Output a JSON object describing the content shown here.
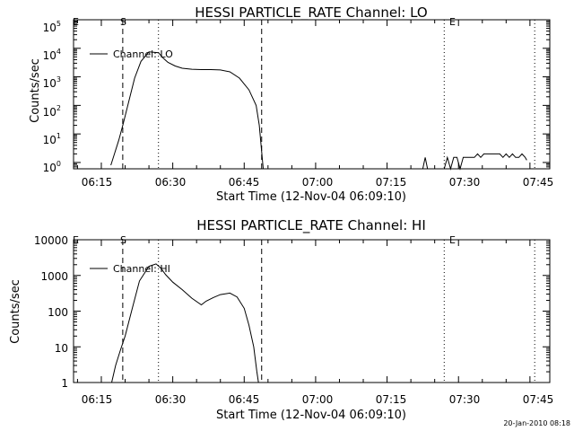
{
  "chart_data": [
    {
      "type": "line",
      "title": "HESSI PARTICLE_RATE Channel: LO",
      "xlabel": "Start Time (12-Nov-04 06:09:10)",
      "ylabel": "Counts/sec",
      "x_ticks": [
        "06:15",
        "06:30",
        "06:45",
        "07:00",
        "07:15",
        "07:30",
        "07:45"
      ],
      "y_ticks": [
        "10^0",
        "10^1",
        "10^2",
        "10^3",
        "10^4",
        "10^5"
      ],
      "y_tick_base": "10",
      "y_tick_exps": [
        "0",
        "1",
        "2",
        "3",
        "4",
        "5"
      ],
      "y_scale": "log",
      "xlim": [
        "06:09:10",
        "07:49:10"
      ],
      "ylim": [
        0.6,
        100000
      ],
      "legend": "Channel: LO",
      "legend_position": "top-left",
      "markers": [
        {
          "label": "S",
          "time": "06:19:30",
          "style": "dashed"
        },
        {
          "label": "",
          "time": "06:27:00",
          "style": "dotted"
        },
        {
          "label": "",
          "time": "06:48:40",
          "style": "dashed"
        },
        {
          "label": "E",
          "time": "07:27:00",
          "style": "dotted"
        },
        {
          "label": "",
          "time": "07:46:00",
          "style": "dotted"
        }
      ],
      "frame_marks": {
        "left": "E"
      },
      "series": [
        {
          "x": [
            "06:17:00",
            "06:18:40",
            "06:19:30",
            "06:20:50",
            "06:22:00",
            "06:23:20",
            "06:25:00",
            "06:27:00",
            "06:28:00",
            "06:29:00",
            "06:30:30",
            "06:32:00",
            "06:34:00",
            "06:36:00",
            "06:38:00",
            "06:40:00",
            "06:42:00",
            "06:44:00",
            "06:46:00",
            "06:47:30",
            "06:48:10",
            "06:48:40",
            "06:49:00"
          ],
          "values": [
            0.8,
            6,
            20,
            150,
            900,
            3500,
            7500,
            7000,
            4500,
            3200,
            2400,
            2000,
            1850,
            1800,
            1800,
            1750,
            1500,
            900,
            350,
            100,
            20,
            2.5,
            0.6
          ]
        },
        {
          "x": [
            "07:22:30",
            "07:23:00",
            "07:23:30"
          ],
          "values": [
            0.6,
            1.5,
            0.6
          ]
        },
        {
          "x": [
            "07:27:00",
            "07:27:40",
            "07:28:20",
            "07:29:00",
            "07:29:40",
            "07:30:20",
            "07:31:00",
            "07:32:00",
            "07:32:40",
            "07:33:20",
            "07:34:00",
            "07:34:40",
            "07:35:20",
            "07:36:00",
            "07:36:40",
            "07:37:20",
            "07:38:00",
            "07:38:40",
            "07:39:20",
            "07:40:00",
            "07:40:40",
            "07:41:20",
            "07:42:00",
            "07:42:40",
            "07:43:20",
            "07:44:00",
            "07:44:20"
          ],
          "values": [
            0.6,
            1.5,
            0.6,
            1.5,
            1.5,
            0.6,
            1.5,
            1.5,
            1.5,
            1.5,
            2,
            1.5,
            2,
            2,
            2,
            2,
            2,
            2,
            1.5,
            2,
            1.5,
            2,
            1.5,
            1.5,
            2,
            1.5,
            1.2
          ]
        }
      ]
    },
    {
      "type": "line",
      "title": "HESSI PARTICLE_RATE Channel: HI",
      "xlabel": "Start Time (12-Nov-04 06:09:10)",
      "ylabel": "Counts/sec",
      "x_ticks": [
        "06:15",
        "06:30",
        "06:45",
        "07:00",
        "07:15",
        "07:30",
        "07:45"
      ],
      "y_ticks": [
        "1",
        "10",
        "100",
        "1000",
        "10000"
      ],
      "y_scale": "log",
      "xlim": [
        "06:09:10",
        "07:49:10"
      ],
      "ylim": [
        1,
        10000
      ],
      "legend": "Channel: HI",
      "legend_position": "top-left",
      "markers": [
        {
          "label": "S",
          "time": "06:19:30",
          "style": "dashed"
        },
        {
          "label": "",
          "time": "06:27:00",
          "style": "dotted"
        },
        {
          "label": "",
          "time": "06:48:40",
          "style": "dashed"
        },
        {
          "label": "E",
          "time": "07:27:00",
          "style": "dotted"
        },
        {
          "label": "",
          "time": "07:46:00",
          "style": "dotted"
        }
      ],
      "frame_marks": {
        "left": "E"
      },
      "series": [
        {
          "x": [
            "06:17:10",
            "06:18:00",
            "06:19:00",
            "06:20:00",
            "06:21:30",
            "06:23:00",
            "06:25:00",
            "06:26:30",
            "06:27:30",
            "06:28:30",
            "06:30:00",
            "06:32:00",
            "06:34:00",
            "06:36:00",
            "06:37:00",
            "06:38:30",
            "06:40:00",
            "06:42:00",
            "06:43:30",
            "06:45:00",
            "06:46:00",
            "06:47:00",
            "06:47:40",
            "06:48:00"
          ],
          "values": [
            1,
            3,
            8,
            20,
            120,
            700,
            1800,
            2100,
            1600,
            1050,
            650,
            400,
            230,
            150,
            190,
            240,
            290,
            320,
            250,
            120,
            40,
            10,
            2,
            1
          ]
        }
      ]
    }
  ],
  "footer": {
    "timestamp": "20-Jan-2010 08:18"
  }
}
